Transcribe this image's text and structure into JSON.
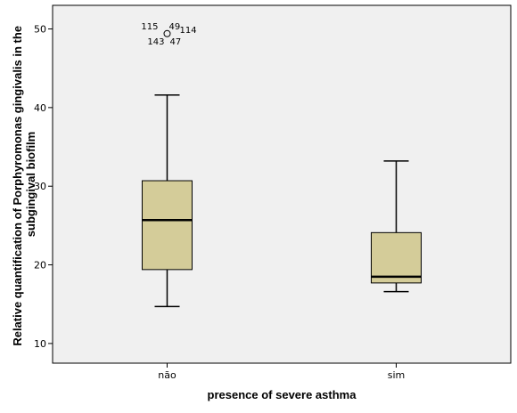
{
  "chart_data": {
    "type": "box",
    "xlabel": "presence of severe asthma",
    "ylabel_lines": [
      "Relative quantification of Porphyromonas gingivalis in the",
      "subgingival biofilm"
    ],
    "ylim": [
      7.5,
      53
    ],
    "yticks": [
      10,
      20,
      30,
      40,
      50
    ],
    "categories": [
      "não",
      "sim"
    ],
    "boxes": [
      {
        "category": "não",
        "whisker_low": 14.7,
        "q1": 19.4,
        "median": 25.7,
        "q3": 30.7,
        "whisker_high": 41.6,
        "outliers": [
          {
            "value": 49.4,
            "labels": [
              "115",
              "49",
              "114",
              "143",
              "47"
            ]
          }
        ]
      },
      {
        "category": "sim",
        "whisker_low": 16.6,
        "q1": 17.7,
        "median": 18.5,
        "q3": 24.1,
        "whisker_high": 33.2,
        "outliers": []
      }
    ],
    "colors": {
      "plot_background": "#f0f0f0",
      "box_fill": "#d4cc99",
      "stroke": "#000000"
    },
    "grid": false
  }
}
